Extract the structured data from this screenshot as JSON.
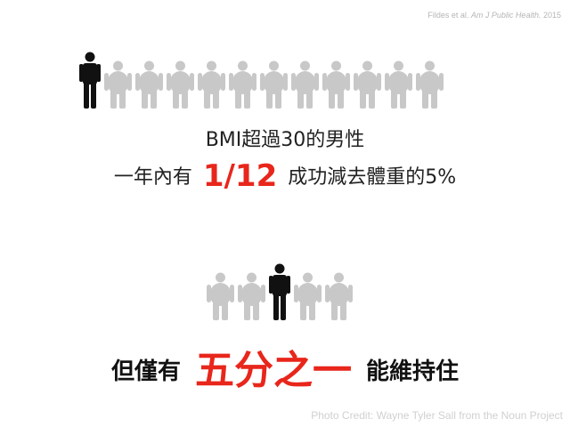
{
  "citation": {
    "authors": "Fildes et al.",
    "journal": "Am J Public Health.",
    "year": "2015"
  },
  "row1": {
    "figures": [
      "slim",
      "overweight",
      "overweight",
      "overweight",
      "overweight",
      "overweight",
      "overweight",
      "overweight",
      "overweight",
      "overweight",
      "overweight",
      "overweight"
    ]
  },
  "row2": {
    "figures": [
      "overweight",
      "overweight",
      "slim",
      "overweight",
      "overweight"
    ]
  },
  "text": {
    "line1": "BMI超過30的男性",
    "line2_prefix": "一年內有",
    "line2_highlight": "1/12",
    "line2_suffix": "成功減去體重的5%",
    "line3_prefix": "但僅有",
    "line3_highlight": "五分之一",
    "line3_suffix": "能維持住"
  },
  "colors": {
    "highlight": "#e8261b",
    "figure_slim": "#111111",
    "figure_overweight": "#c8c8c8"
  },
  "credit": "Photo Credit: Wayne Tyler Sall from the Noun Project"
}
